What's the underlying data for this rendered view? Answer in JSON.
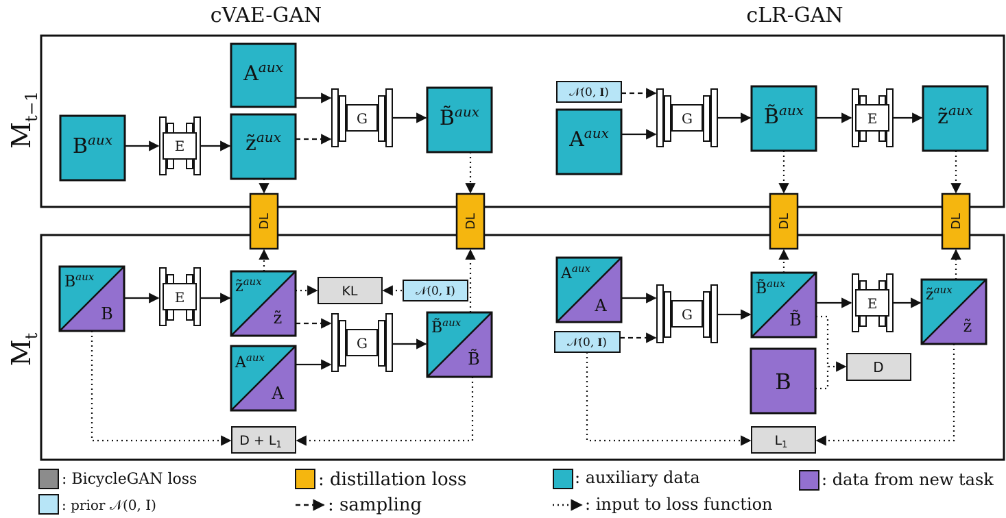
{
  "titles": {
    "left": "cVAE-GAN",
    "right": "cLR-GAN"
  },
  "rows": {
    "top": "M",
    "top_sub": "t−1",
    "bottom": "M",
    "bottom_sub": "t"
  },
  "labels": {
    "b_aux_base": "B",
    "a_aux_base": "A",
    "z_aux_base": "z̃",
    "bt_aux_base": "B̃",
    "aux_sup": "aux",
    "b": "B",
    "a": "A",
    "z": "z̃",
    "bt": "B̃",
    "encoder": "E",
    "generator": "G",
    "dl": "DL",
    "kl": "KL",
    "prior": "𝒩(0, 𝐈)",
    "d_plus_l1": "D + L",
    "l1": "L",
    "one": "1",
    "d": "D"
  },
  "legend": {
    "bicycle": ": BicycleGAN loss",
    "distill": ": distillation loss",
    "aux": ": auxiliary data",
    "newtask": ": data from new task",
    "prior": ": prior 𝒩(0, I)",
    "sampling": ": sampling",
    "input": ": input to loss function"
  },
  "colors": {
    "aux": "#29b5c8",
    "newtask": "#9370cf",
    "distill": "#f5b60f",
    "loss": "#dcdcdc",
    "prior": "#b7e5f7"
  }
}
